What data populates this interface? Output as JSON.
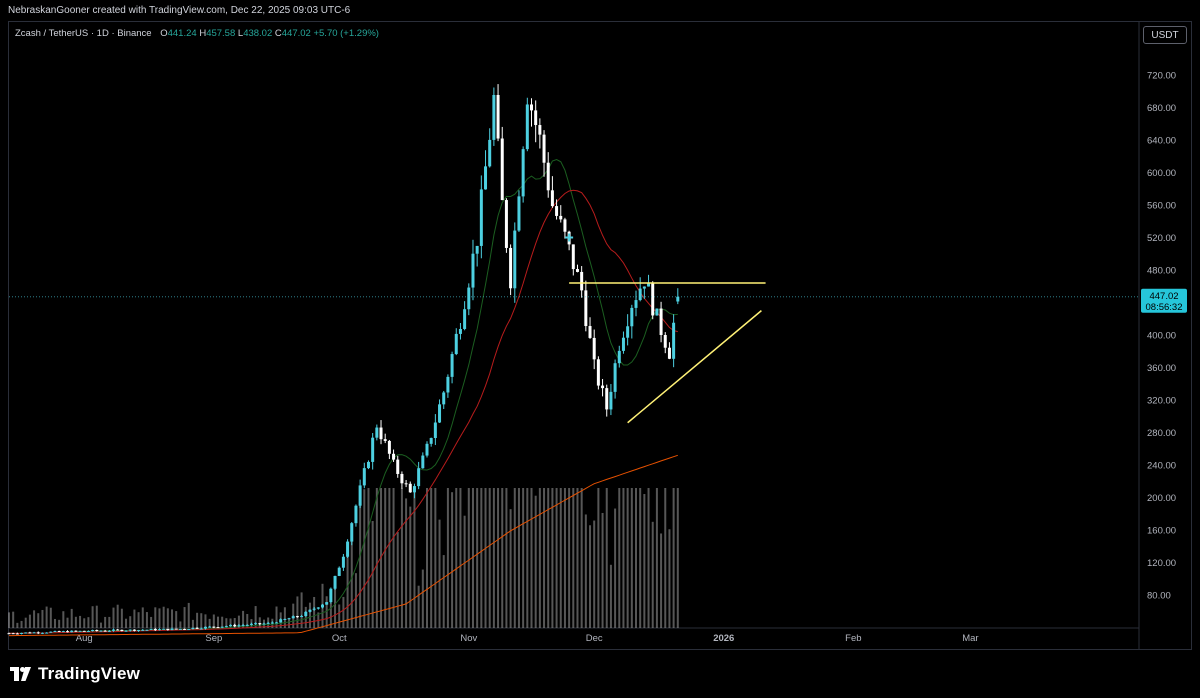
{
  "header": {
    "credit": "NebraskanGooner created with TradingView.com, Dec 22, 2025 09:03 UTC-6",
    "symbol": "Zcash / TetherUS · 1D · Binance",
    "open_label": "O",
    "open": "441.24",
    "high_label": "H",
    "high": "457.58",
    "low_label": "L",
    "low": "438.02",
    "close_label": "C",
    "close": "447.02",
    "change": "+5.70 (+1.29%)",
    "currency": "USDT"
  },
  "price_tag": {
    "price": "447.02",
    "countdown": "08:56:32"
  },
  "footer": {
    "brand": "TradingView"
  },
  "colors": {
    "up": "#26a69a",
    "down": "#ffffff",
    "up_candle": "#4dd0e1",
    "ma_short": "#1b5e20",
    "ma_mid": "#b71c1c",
    "ma_long": "#e65100",
    "trendline": "#fff176",
    "price_line": "#4dd0e1",
    "volume": "#9e9e9e"
  },
  "chart_data": {
    "type": "candlestick",
    "y_axis_ticks": [
      "720.00",
      "680.00",
      "640.00",
      "600.00",
      "560.00",
      "520.00",
      "480.00",
      "440.00",
      "400.00",
      "360.00",
      "320.00",
      "280.00",
      "240.00",
      "200.00",
      "160.00",
      "120.00",
      "80.00"
    ],
    "x_axis_ticks": [
      "Aug",
      "Sep",
      "Oct",
      "Nov",
      "Dec",
      "2026",
      "Feb",
      "Mar"
    ],
    "grid": false,
    "last_price": 447.02,
    "key_points": [
      {
        "date": "Jul",
        "price": 35
      },
      {
        "date": "Sep end",
        "price": 55
      },
      {
        "date": "Oct 10",
        "price": 290
      },
      {
        "date": "Oct 20",
        "price": 200
      },
      {
        "date": "Nov 7",
        "price": 740
      },
      {
        "date": "Nov 12",
        "price": 470
      },
      {
        "date": "Nov 16",
        "price": 735
      },
      {
        "date": "Dec 2",
        "price": 305
      },
      {
        "date": "Dec 14",
        "price": 470
      },
      {
        "date": "Dec 19",
        "price": 380
      },
      {
        "date": "Dec 22",
        "price": 447
      }
    ],
    "resistance_line": {
      "price": 464,
      "from": "Nov 25",
      "to": "Dec 26"
    },
    "support_line": {
      "from": {
        "date": "Dec 1",
        "price": 292
      },
      "to": {
        "date": "Dec 26",
        "price": 430
      }
    }
  }
}
